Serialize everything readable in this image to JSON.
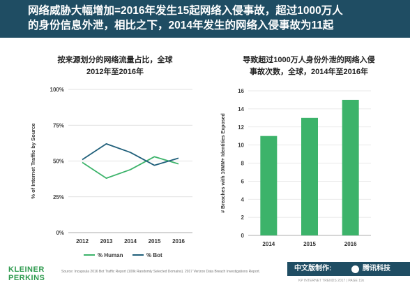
{
  "header": {
    "line1": "网络威胁大幅增加=2016年发生15起网络入侵事故，超过1000万人",
    "line2": "的身份信息外泄，相比之下，2014年发生的网络入侵事故为11起",
    "background": "#1f4d63"
  },
  "chart_data": [
    {
      "type": "line",
      "title_line1": "按来源划分的网络流量占比，全球",
      "title_line2": "2012年至2016年",
      "ylabel": "% of Internet Traffic by Source",
      "x": [
        "2012",
        "2013",
        "2014",
        "2015",
        "2016"
      ],
      "yticks": [
        "0%",
        "25%",
        "50%",
        "75%",
        "100%"
      ],
      "ylim": [
        0,
        100
      ],
      "series": [
        {
          "name": "% Human",
          "values": [
            49,
            38,
            44,
            53,
            48
          ],
          "color": "#3cb36a"
        },
        {
          "name": "% Bot",
          "values": [
            51,
            62,
            56,
            47,
            52
          ],
          "color": "#1f5f7a"
        }
      ],
      "legend_position": "bottom"
    },
    {
      "type": "bar",
      "title_line1": "导致超过1000万人身份外泄的网络入侵",
      "title_line2": "事故次数，全球，2014年至2016年",
      "ylabel": "# Breaches with 10MM+ Identities Exposed",
      "categories": [
        "2014",
        "2015",
        "2016"
      ],
      "values": [
        11,
        13,
        15
      ],
      "yticks": [
        "0",
        "2",
        "4",
        "6",
        "8",
        "10",
        "12",
        "14",
        "16"
      ],
      "ylim": [
        0,
        16
      ],
      "color": "#3cb36a"
    }
  ],
  "footer": {
    "logo_line1": "KLEINER",
    "logo_line2": "PERKINS",
    "source": "Source: Incapsula 2016 Bot Traffic Report (100k Randomly Selected Domains). 2017 Verizon Data Breach Investigations Report.",
    "badge_made": "中文版制作:",
    "badge_brand": "腾讯科技",
    "page": "KP INTERNET TRENDS 2017 | PAGE 19x"
  }
}
